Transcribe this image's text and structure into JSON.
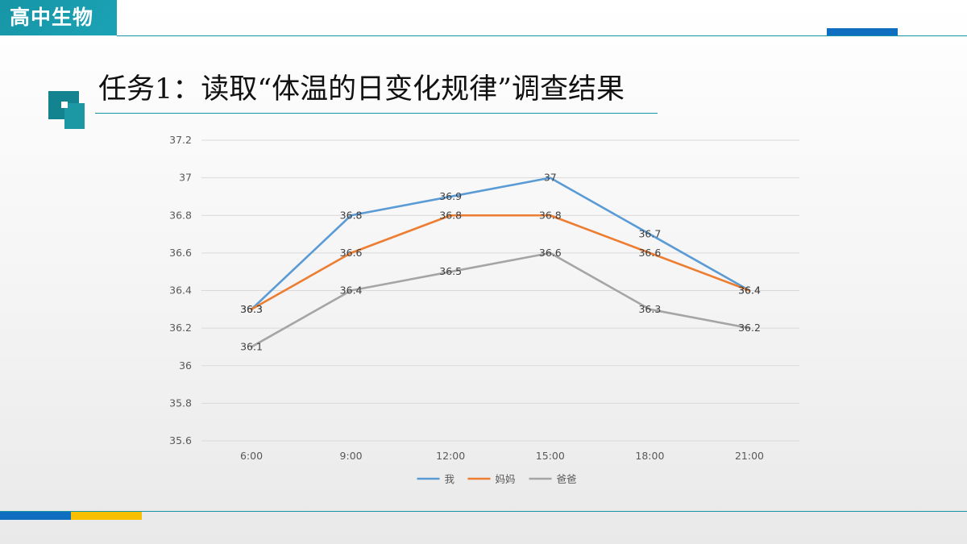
{
  "header": {
    "subject": "高中生物"
  },
  "title": "任务1：读取“体温的日变化规律”调查结果",
  "colors": {
    "teal": "#1795a6",
    "blue_accent": "#0e6fc0",
    "yellow_accent": "#f6bf00"
  },
  "chart_data": {
    "type": "line",
    "categories": [
      "6:00",
      "9:00",
      "12:00",
      "15:00",
      "18:00",
      "21:00"
    ],
    "series": [
      {
        "name": "我",
        "color": "#5b9bd5",
        "values": [
          36.3,
          36.8,
          36.9,
          37.0,
          36.7,
          36.4
        ]
      },
      {
        "name": "妈妈",
        "color": "#ed7d31",
        "values": [
          36.3,
          36.6,
          36.8,
          36.8,
          36.6,
          36.4
        ]
      },
      {
        "name": "爸爸",
        "color": "#a5a5a5",
        "values": [
          36.1,
          36.4,
          36.5,
          36.6,
          36.3,
          36.2
        ]
      }
    ],
    "data_labels": [
      [
        "36.3",
        "36.8",
        "36.9",
        "37",
        "36.7",
        "36.4"
      ],
      [
        "36.3",
        "36.6",
        "36.8",
        "36.8",
        "36.6",
        "36.4"
      ],
      [
        "36.1",
        "36.4",
        "36.5",
        "36.6",
        "36.3",
        "36.2"
      ]
    ],
    "ylim": [
      35.6,
      37.2
    ],
    "yticks": [
      "35.6",
      "35.8",
      "36",
      "36.2",
      "36.4",
      "36.6",
      "36.8",
      "37",
      "37.2"
    ],
    "grid": true,
    "legend": "bottom"
  }
}
